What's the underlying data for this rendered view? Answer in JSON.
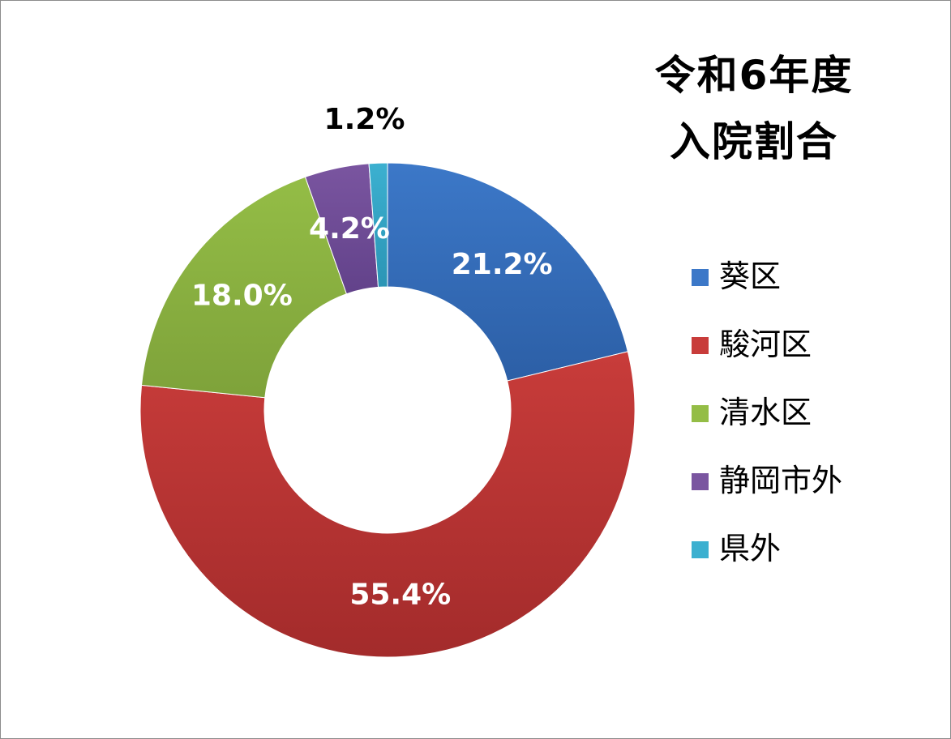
{
  "chart_data": {
    "type": "pie",
    "variant": "donut",
    "title_lines": [
      "令和6年度",
      "入院割合"
    ],
    "start": "12 o'clock",
    "direction": "clockwise",
    "legend_position": "right",
    "series": [
      {
        "name": "葵区",
        "value": 21.2,
        "label": "21.2%",
        "color": "#3c78c8",
        "color_dark": "#2c5fa6",
        "label_color": "#ffffff"
      },
      {
        "name": "駿河区",
        "value": 55.4,
        "label": "55.4%",
        "color": "#c83c3a",
        "color_dark": "#a32b2b",
        "label_color": "#ffffff"
      },
      {
        "name": "清水区",
        "value": 18.0,
        "label": "18.0%",
        "color": "#94bd46",
        "color_dark": "#7ea23a",
        "label_color": "#ffffff"
      },
      {
        "name": "静岡市外",
        "value": 4.2,
        "label": "4.2%",
        "color": "#7a55a0",
        "color_dark": "#62428a",
        "label_color": "#ffffff"
      },
      {
        "name": "県外",
        "value": 1.2,
        "label": "1.2%",
        "color": "#3cb0d0",
        "color_dark": "#2b95b5",
        "label_color": "#000000"
      }
    ]
  }
}
